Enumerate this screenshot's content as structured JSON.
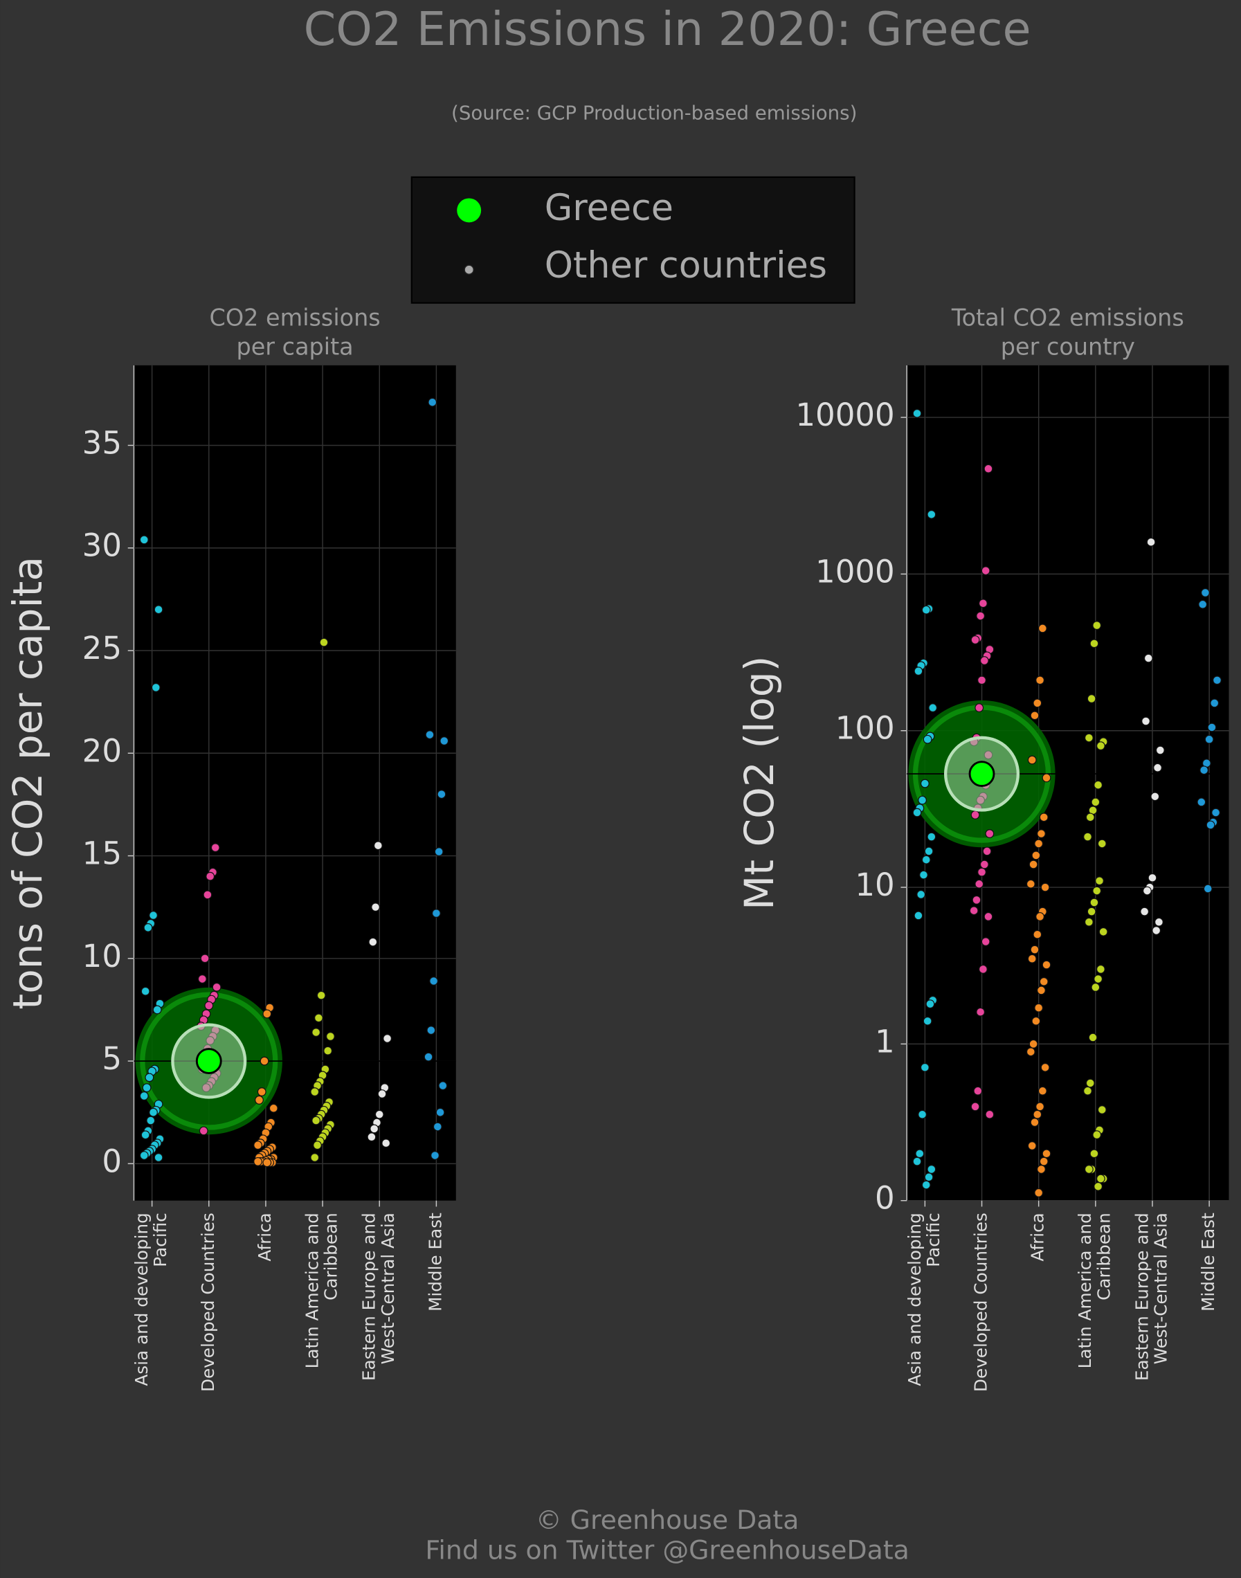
{
  "title": "CO2 Emissions in 2020: Greece",
  "subtitle": "(Source: GCP Production-based emissions)",
  "legend": [
    {
      "name": "Greece",
      "color": "#00ff00"
    },
    {
      "name": "Other countries",
      "color": "#aaaaaa"
    }
  ],
  "footer": [
    "© Greenhouse Data",
    "Find us on Twitter @GreenhouseData"
  ],
  "chart_data": [
    {
      "type": "strip",
      "title": [
        "CO2 emissions",
        "per capita"
      ],
      "ylabel": "tons of CO2 per capita",
      "yscale": "linear",
      "categories": [
        "Asia and developing\nPacific",
        "Developed Countries",
        "Africa",
        "Latin America and\nCaribbean",
        "Eastern Europe and\nWest-Central Asia",
        "Middle East"
      ],
      "colors": [
        "#1fc3d8",
        "#e6449a",
        "#f28a22",
        "#bcd420",
        "#e6e6e6",
        "#1f98d6"
      ],
      "values": [
        [
          30.4,
          27.0,
          23.2,
          12.1,
          11.7,
          11.5,
          8.4,
          7.8,
          7.5,
          4.6,
          4.5,
          4.2,
          3.7,
          3.3,
          2.9,
          2.6,
          2.5,
          2.1,
          1.6,
          1.4,
          1.2,
          1.0,
          0.9,
          0.7,
          0.6,
          0.5,
          0.4,
          0.3
        ],
        [
          15.4,
          14.2,
          14.0,
          13.1,
          10.0,
          9.0,
          8.6,
          8.2,
          8.0,
          7.7,
          7.3,
          7.0,
          6.7,
          6.5,
          6.2,
          6.0,
          5.6,
          5.3,
          4.6,
          4.4,
          4.2,
          4.0,
          3.8,
          3.7,
          1.6
        ],
        [
          7.6,
          7.3,
          5.0,
          3.5,
          3.1,
          2.7,
          2.0,
          1.8,
          1.5,
          1.2,
          1.0,
          0.9,
          0.8,
          0.7,
          0.6,
          0.5,
          0.4,
          0.3,
          0.3,
          0.2,
          0.2,
          0.15,
          0.1,
          0.1,
          0.1,
          0.05,
          0.05,
          0.05
        ],
        [
          25.4,
          8.2,
          7.1,
          6.4,
          6.2,
          5.5,
          4.6,
          4.3,
          4.0,
          3.8,
          3.5,
          3.0,
          2.8,
          2.6,
          2.4,
          2.2,
          2.1,
          1.9,
          1.7,
          1.5,
          1.3,
          1.1,
          0.9,
          0.3
        ],
        [
          15.5,
          12.5,
          10.8,
          6.1,
          3.7,
          3.4,
          2.4,
          2.0,
          1.7,
          1.3,
          1.0
        ],
        [
          37.1,
          20.9,
          20.6,
          18.0,
          15.2,
          12.2,
          8.9,
          6.5,
          5.2,
          3.8,
          2.5,
          1.8,
          0.4
        ]
      ],
      "highlight": [
        null,
        5.0,
        null,
        null,
        null,
        null
      ],
      "ylim": [
        -1.8,
        38.9
      ],
      "yticks": [
        0,
        5,
        10,
        15,
        20,
        25,
        30,
        35
      ],
      "grid": true
    },
    {
      "type": "strip",
      "title": [
        "Total CO2 emissions",
        "per country"
      ],
      "ylabel": "Mt CO2 (log)",
      "yscale": "symlog",
      "categories": [
        "Asia and developing\nPacific",
        "Developed Countries",
        "Africa",
        "Latin America and\nCaribbean",
        "Eastern Europe and\nWest-Central Asia",
        "Middle East"
      ],
      "colors": [
        "#1fc3d8",
        "#e6449a",
        "#f28a22",
        "#bcd420",
        "#e6e6e6",
        "#1f98d6"
      ],
      "values": [
        [
          10600,
          2400,
          600,
          590,
          270,
          260,
          240,
          140,
          92,
          88,
          46,
          36,
          32,
          30,
          21,
          17,
          15,
          12,
          9,
          6.6,
          1.9,
          1.8,
          1.4,
          0.85,
          0.55,
          0.3,
          0.25,
          0.2,
          0.15,
          0.1
        ],
        [
          4700,
          1050,
          650,
          540,
          390,
          380,
          330,
          300,
          280,
          210,
          140,
          90,
          85,
          70,
          45,
          38,
          36,
          32,
          29,
          22,
          17,
          14,
          12.5,
          10.5,
          8.3,
          7.1,
          6.5,
          4.5,
          3.0,
          1.6,
          0.7,
          0.6,
          0.55
        ],
        [
          450,
          210,
          150,
          125,
          65,
          50,
          28,
          22,
          19,
          16,
          14,
          10.5,
          10,
          7,
          6.5,
          5,
          4,
          3.5,
          3.2,
          2.5,
          2.2,
          1.7,
          1.4,
          1.0,
          0.95,
          0.85,
          0.7,
          0.6,
          0.55,
          0.5,
          0.35,
          0.3,
          0.25,
          0.2,
          0.05
        ],
        [
          470,
          360,
          160,
          90,
          85,
          80,
          45,
          35,
          31,
          28,
          21,
          19,
          11,
          9.5,
          8,
          7,
          6,
          5.2,
          3,
          2.6,
          2.3,
          1.1,
          0.75,
          0.7,
          0.58,
          0.45,
          0.42,
          0.3,
          0.2,
          0.2,
          0.14,
          0.14,
          0.09
        ],
        [
          1600,
          290,
          115,
          75,
          58,
          38,
          11.5,
          10,
          9.5,
          7,
          6,
          5.3
        ],
        [
          760,
          640,
          210,
          150,
          105,
          88,
          62,
          56,
          35,
          30,
          26,
          25,
          9.8
        ]
      ],
      "highlight": [
        null,
        53,
        null,
        null,
        null,
        null
      ],
      "ylim": [
        0,
        21500
      ],
      "yticks": [
        0,
        1,
        10,
        100,
        1000,
        10000
      ],
      "grid": true
    }
  ]
}
